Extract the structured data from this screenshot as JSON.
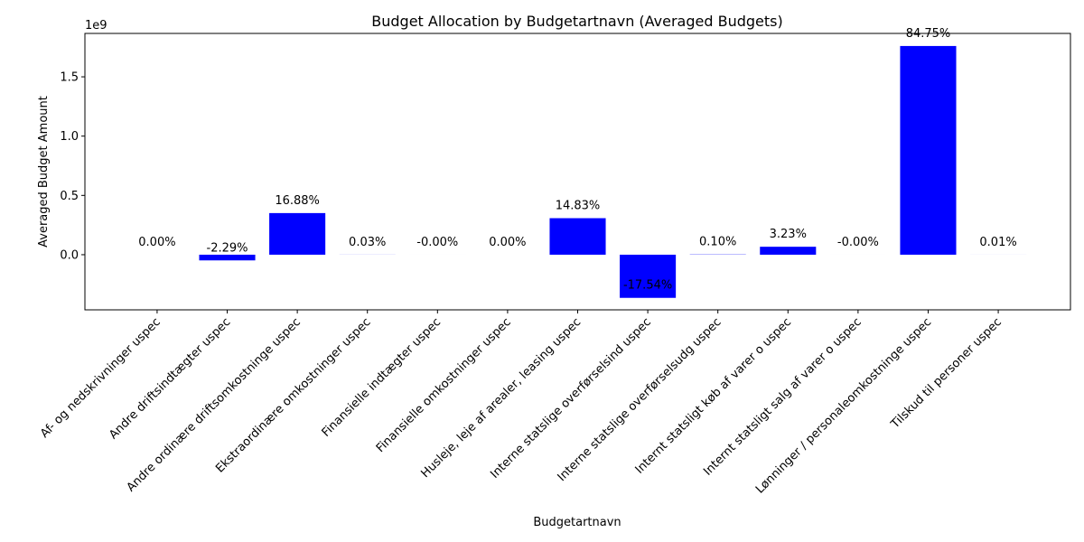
{
  "chart_data": {
    "type": "bar",
    "title": "Budget Allocation by Budgetartnavn (Averaged Budgets)",
    "x_label": "Budgetartnavn",
    "y_label": "Averaged Budget Amount",
    "y_offset_label": "1e9",
    "categories": [
      "Af- og nedskrivninger uspec",
      "Andre driftsindtægter uspec",
      "Andre ordinære driftsomkostninge uspec",
      "Ekstraordinære omkostninger uspec",
      "Finansielle indtægter uspec",
      "Finansielle omkostninger uspec",
      "Husleje, leje af arealer, leasing uspec",
      "Interne statslige overførselsind uspec",
      "Interne statslige overførselsudg uspec",
      "Internt statsligt køb af varer o uspec",
      "Internt statsligt salg af varer o uspec",
      "Lønninger / personaleomkostninge uspec",
      "Tilskud til personer uspec"
    ],
    "values": [
      0,
      -0.048,
      0.351,
      0.0006,
      -5e-05,
      2e-05,
      0.308,
      -0.364,
      0.002,
      0.067,
      -3e-05,
      1.76,
      0.0002
    ],
    "percent_labels": [
      "0.00%",
      "-2.29%",
      "16.88%",
      "0.03%",
      "-0.00%",
      "0.00%",
      "14.83%",
      "-17.54%",
      "0.10%",
      "3.23%",
      "-0.00%",
      "84.75%",
      "0.01%"
    ],
    "color": "#0000ff",
    "ylim": [
      -0.465,
      1.866
    ],
    "yticks": [
      {
        "value": 0,
        "label": "0.0"
      },
      {
        "value": 0.5,
        "label": "0.5"
      },
      {
        "value": 1,
        "label": "1.0"
      },
      {
        "value": 1.5,
        "label": "1.5"
      }
    ]
  }
}
